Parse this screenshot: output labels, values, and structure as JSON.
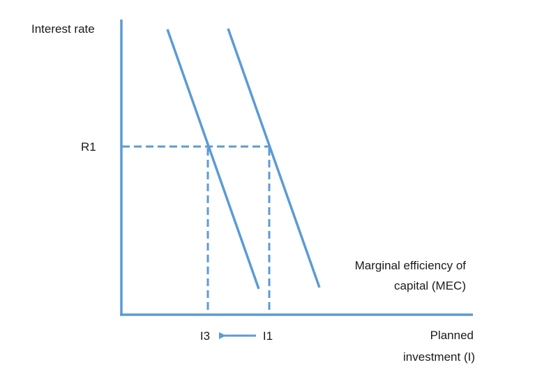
{
  "axes": {
    "y_label": "Interest rate",
    "x_label_line1": "Planned",
    "x_label_line2": "investment (I)"
  },
  "markers": {
    "rate": "R1",
    "investment_new": "I3",
    "investment_old": "I1"
  },
  "curve": {
    "label_line1": "Marginal efficiency of",
    "label_line2": "capital (MEC)"
  },
  "colors": {
    "line": "#5b9bd5",
    "text": "#1a1a1a"
  }
}
